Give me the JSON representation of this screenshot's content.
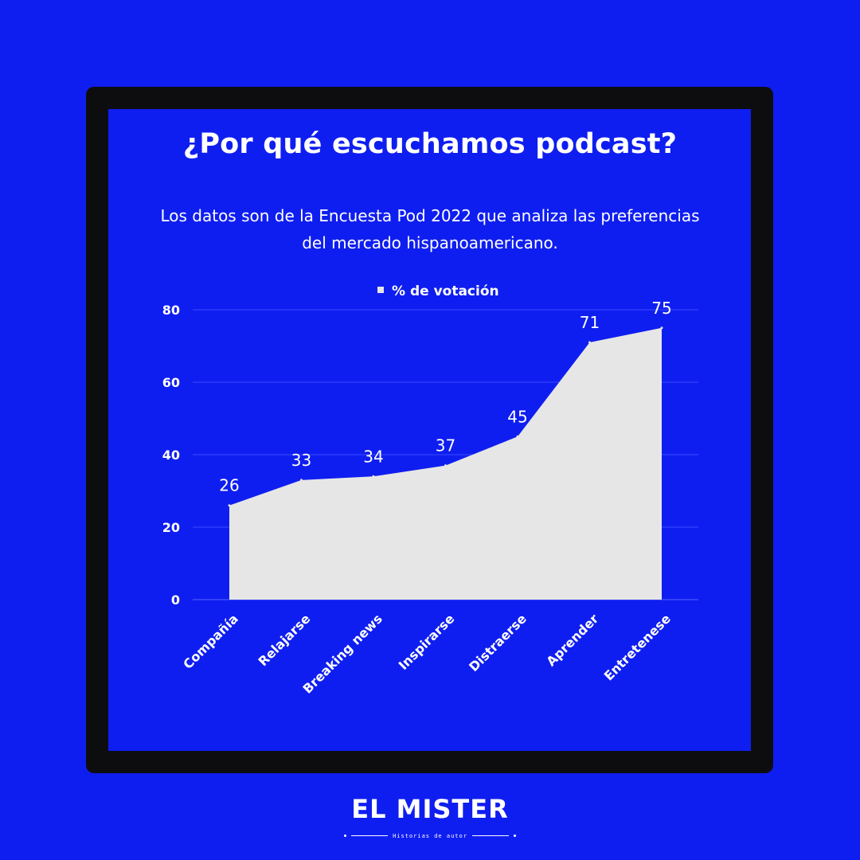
{
  "page": {
    "title": "¿Por qué escuchamos podcast?",
    "subtitle": "Los datos son de la Encuesta Pod 2022 que analiza las preferencias del mercado hispanoamericano."
  },
  "brand": {
    "name": "EL MISTER",
    "tagline": "Historias de autor"
  },
  "colors": {
    "background": "#0f1ef0",
    "frame": "#0d0d0f",
    "area_fill": "#e6e6e6",
    "gridline": "#3a4cff",
    "text": "#ffffff"
  },
  "chart_data": {
    "type": "area",
    "categories": [
      "Compañía",
      "Relajarse",
      "Breaking news",
      "Inspirarse",
      "Distraerse",
      "Aprender",
      "Entretenese"
    ],
    "series": [
      {
        "name": "% de votación",
        "values": [
          26,
          33,
          34,
          37,
          45,
          71,
          75
        ]
      }
    ],
    "yticks": [
      0,
      20,
      40,
      60,
      80
    ],
    "ylim": [
      0,
      80
    ],
    "grid": true,
    "legend": "top-center",
    "data_labels": true
  }
}
